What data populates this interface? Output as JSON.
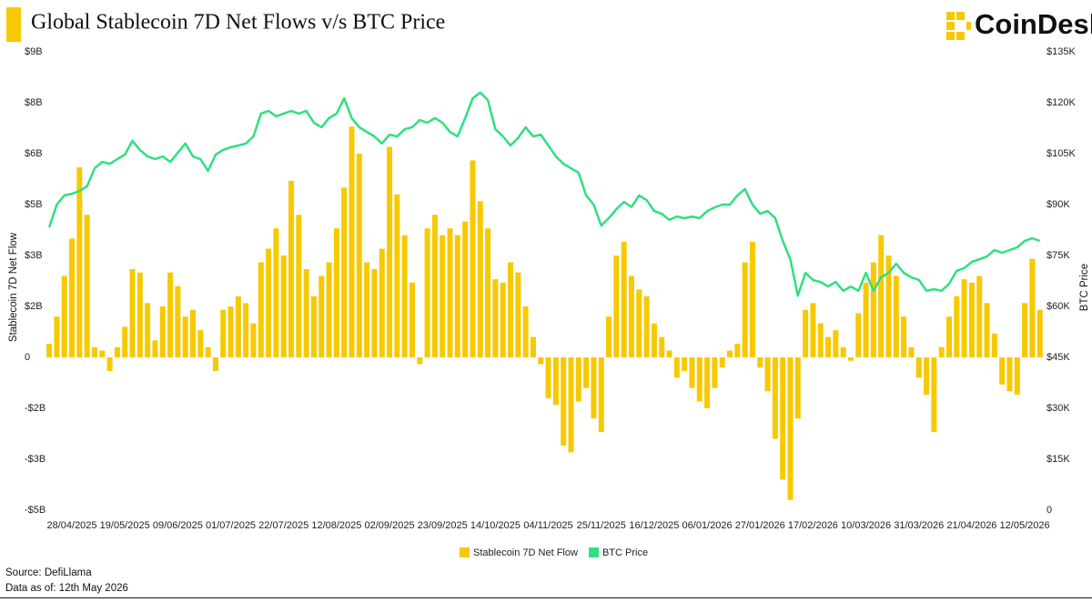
{
  "chart_data": {
    "type": "bar",
    "title": "Global Stablecoin 7D Net Flows v/s BTC Price",
    "logo": "CoinDesk",
    "y_label": "Stablecoin 7D Net Flow",
    "y2_label": "BTC Price",
    "source": "Source: DefiLlama",
    "data_as_of": "Data as of: 12th May 2026",
    "legend": "bottom",
    "grid": false,
    "categories": [
      null,
      null,
      null,
      "28/04/2025",
      null,
      null,
      null,
      null,
      null,
      null,
      "19/05/2025",
      null,
      null,
      null,
      null,
      null,
      null,
      "09/06/2025",
      null,
      null,
      null,
      null,
      null,
      null,
      "01/07/2025",
      null,
      null,
      null,
      null,
      null,
      null,
      "22/07/2025",
      null,
      null,
      null,
      null,
      null,
      null,
      "12/08/2025",
      null,
      null,
      null,
      null,
      null,
      null,
      "02/09/2025",
      null,
      null,
      null,
      null,
      null,
      null,
      "23/09/2025",
      null,
      null,
      null,
      null,
      null,
      null,
      "14/10/2025",
      null,
      null,
      null,
      null,
      null,
      null,
      "04/11/2025",
      null,
      null,
      null,
      null,
      null,
      null,
      "25/11/2025",
      null,
      null,
      null,
      null,
      null,
      null,
      "16/12/2025",
      null,
      null,
      null,
      null,
      null,
      null,
      "06/01/2026",
      null,
      null,
      null,
      null,
      null,
      null,
      "27/01/2026",
      null,
      null,
      null,
      null,
      null,
      null,
      "17/02/2026",
      null,
      null,
      null,
      null,
      null,
      null,
      "10/03/2026",
      null,
      null,
      null,
      null,
      null,
      null,
      "31/03/2026",
      null,
      null,
      null,
      null,
      null,
      null,
      "21/04/2026",
      null,
      null,
      null,
      null,
      null,
      null,
      "12/05/2026",
      null,
      null
    ],
    "series": [
      {
        "name": "Stablecoin 7D Net Flow",
        "type": "bar",
        "color": "#f7c900",
        "values": [
          0.4,
          1.2,
          2.4,
          3.5,
          5.6,
          4.2,
          0.3,
          0.2,
          -0.4,
          0.3,
          0.9,
          2.6,
          2.5,
          1.6,
          0.5,
          1.5,
          2.5,
          2.1,
          1.2,
          1.4,
          0.8,
          0.3,
          -0.4,
          1.4,
          1.5,
          1.8,
          1.6,
          1.0,
          2.8,
          3.2,
          3.8,
          3.0,
          5.2,
          4.2,
          2.6,
          1.8,
          2.4,
          2.8,
          3.8,
          5.0,
          6.8,
          6.0,
          2.8,
          2.6,
          3.2,
          6.2,
          4.8,
          3.6,
          2.2,
          -0.2,
          3.8,
          4.2,
          3.6,
          3.8,
          3.6,
          4.0,
          5.8,
          4.6,
          3.8,
          2.3,
          2.2,
          2.8,
          2.5,
          1.5,
          0.6,
          -0.2,
          -1.2,
          -1.4,
          -2.6,
          -2.8,
          -1.3,
          -0.9,
          -1.8,
          -2.2,
          1.2,
          3.0,
          3.4,
          2.4,
          2.0,
          1.8,
          1.0,
          0.6,
          0.2,
          -0.6,
          -0.4,
          -0.9,
          -1.3,
          -1.5,
          -0.9,
          -0.3,
          0.2,
          0.4,
          2.8,
          3.4,
          -0.3,
          -1.0,
          -2.4,
          -3.6,
          -4.2,
          -1.8,
          1.4,
          1.6,
          1.0,
          0.6,
          0.8,
          0.3,
          -0.1,
          1.3,
          2.2,
          2.8,
          3.6,
          3.0,
          2.4,
          1.2,
          0.3,
          -0.6,
          -1.1,
          -2.2,
          0.3,
          1.2,
          1.8,
          2.3,
          2.2,
          2.4,
          1.6,
          0.7,
          -0.8,
          -1.0,
          -1.1,
          1.6,
          2.9,
          1.4
        ]
      },
      {
        "name": "BTC Price",
        "type": "line",
        "axis": "y2",
        "color": "#2ee07f",
        "values": [
          83.3,
          90,
          92.7,
          93.2,
          94,
          95.4,
          100.7,
          102.6,
          102,
          103.4,
          104.7,
          108.8,
          106.1,
          104.2,
          103.4,
          104.2,
          102.6,
          105.3,
          108,
          104.2,
          103.4,
          99.9,
          104.7,
          106.1,
          106.9,
          107.4,
          108,
          110.1,
          116.8,
          117.6,
          116,
          116.8,
          117.6,
          116.8,
          117.6,
          114.1,
          112.8,
          115.5,
          116.8,
          121.3,
          115.5,
          112.8,
          111.4,
          110.1,
          108,
          110.6,
          110.1,
          112.2,
          112.8,
          114.9,
          114.1,
          115.5,
          114.1,
          111.4,
          110.1,
          115.5,
          121.3,
          123,
          120.8,
          112.2,
          110.1,
          107.4,
          109.6,
          112.8,
          110.1,
          110.6,
          107.4,
          104.2,
          102,
          100.7,
          99.4,
          92.7,
          90,
          83.8,
          86,
          88.7,
          90.8,
          89.3,
          92.7,
          91.3,
          88.1,
          87.3,
          85.5,
          86.5,
          86,
          86.5,
          86,
          88.1,
          89.2,
          90,
          90,
          92.7,
          94.6,
          90,
          87.3,
          88.1,
          86,
          79.3,
          73.9,
          63.2,
          69.9,
          67.8,
          67.2,
          65.9,
          67.2,
          64.6,
          65.9,
          64.6,
          69.9,
          64.6,
          68.6,
          69.9,
          72.6,
          69.9,
          68.6,
          67.8,
          64.6,
          65.1,
          64.6,
          66.7,
          70.5,
          71.3,
          73.1,
          73.9,
          74.7,
          76.6,
          75.8,
          76.6,
          77.4,
          79.3,
          80.1,
          79.3
        ]
      }
    ],
    "ylim": [
      -4.5,
      9
    ],
    "yticks": [
      {
        "value": -4.5,
        "label": "-$5B"
      },
      {
        "value": -3,
        "label": "-$3B"
      },
      {
        "value": -1.5,
        "label": "-$2B"
      },
      0,
      {
        "value": 1.5,
        "label": "$2B"
      },
      {
        "value": 3,
        "label": "$3B"
      },
      {
        "value": 4.5,
        "label": "$5B"
      },
      {
        "value": 6,
        "label": "$6B"
      },
      {
        "value": 7.5,
        "label": "$8B"
      },
      {
        "value": 9,
        "label": "$9B"
      }
    ],
    "y2lim": [
      0,
      135
    ],
    "y2ticks": [
      0,
      {
        "value": 15,
        "label": "$15K"
      },
      {
        "value": 30,
        "label": "$30K"
      },
      {
        "value": 45,
        "label": "$45K"
      },
      {
        "value": 60,
        "label": "$60K"
      },
      {
        "value": 75,
        "label": "$75K"
      },
      {
        "value": 90,
        "label": "$90K"
      },
      {
        "value": 105,
        "label": "$105K"
      },
      {
        "value": 120,
        "label": "$120K"
      },
      {
        "value": 135,
        "label": "$135K"
      }
    ]
  }
}
